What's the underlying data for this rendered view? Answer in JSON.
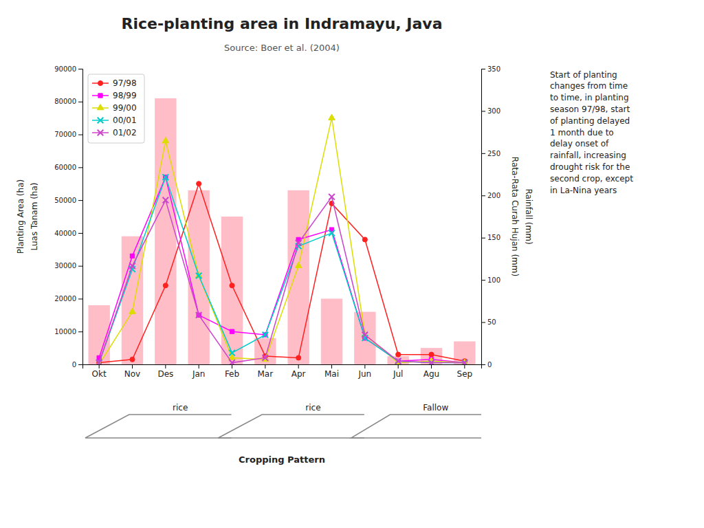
{
  "chart_data": {
    "type": "bar",
    "title": "Rice-planting area in Indramayu, Java",
    "source": "Source: Boer et al. (2004)",
    "categories": [
      "Okt",
      "Nov",
      "Des",
      "Jan",
      "Feb",
      "Mar",
      "Apr",
      "Mai",
      "Jun",
      "Jul",
      "Agu",
      "Sep"
    ],
    "series": [
      {
        "type": "bar",
        "color": "#FFB6C1",
        "values": [
          18000,
          39000,
          81000,
          53000,
          45000,
          8000,
          53000,
          20000,
          16000,
          2500,
          5000,
          7000
        ]
      },
      {
        "name": "97/98",
        "type": "line",
        "color": "#FF2020",
        "marker": "circle",
        "values": [
          500,
          1500,
          24000,
          55000,
          24000,
          2500,
          2000,
          49000,
          38000,
          3000,
          3000,
          1000
        ]
      },
      {
        "name": "98/99",
        "type": "line",
        "color": "#FF00FF",
        "marker": "square",
        "values": [
          2000,
          33000,
          57000,
          15000,
          10000,
          9000,
          38000,
          41000,
          8000,
          1000,
          1500,
          500
        ]
      },
      {
        "name": "99/00",
        "type": "line",
        "color": "#DDDD00",
        "marker": "triangle",
        "values": [
          0,
          16000,
          68000,
          27000,
          2000,
          1500,
          30000,
          75000,
          9000,
          500,
          1000,
          500
        ]
      },
      {
        "name": "00/01",
        "type": "line",
        "color": "#00CCCC",
        "marker": "x",
        "values": [
          500,
          29000,
          57000,
          27000,
          3500,
          9000,
          36000,
          40000,
          8000,
          1000,
          500,
          500
        ]
      },
      {
        "name": "01/02",
        "type": "line",
        "color": "#CC44CC",
        "marker": "x",
        "values": [
          500,
          30000,
          50000,
          15000,
          500,
          2000,
          37000,
          51000,
          9000,
          1000,
          500,
          500
        ]
      }
    ],
    "ylabel": [
      "Planting Area (ha)",
      "Luas Tanam (ha)"
    ],
    "y2label": [
      "Rata-Rata Curah Hujan (mm)",
      "Rainfall (mm)"
    ],
    "ylim": [
      0,
      90000
    ],
    "yticks": [
      0,
      10000,
      20000,
      30000,
      40000,
      50000,
      60000,
      70000,
      80000,
      90000
    ],
    "y2lim": [
      0,
      350
    ],
    "y2ticks": [
      0,
      50,
      100,
      150,
      200,
      250,
      300,
      350
    ],
    "legend": "upper left",
    "grid": false,
    "annotation": "Start of planting\nchanges from time\nto time, in planting\nseason 97/98, start\nof planting delayed\n1 month due to\ndelay onset of\nrainfall, increasing\ndrought risk for the\nsecond crop, except\nin La-Nina years",
    "cropping_pattern": {
      "label": "Cropping Pattern",
      "crops": [
        "rice",
        "rice",
        "Fallow"
      ]
    }
  }
}
